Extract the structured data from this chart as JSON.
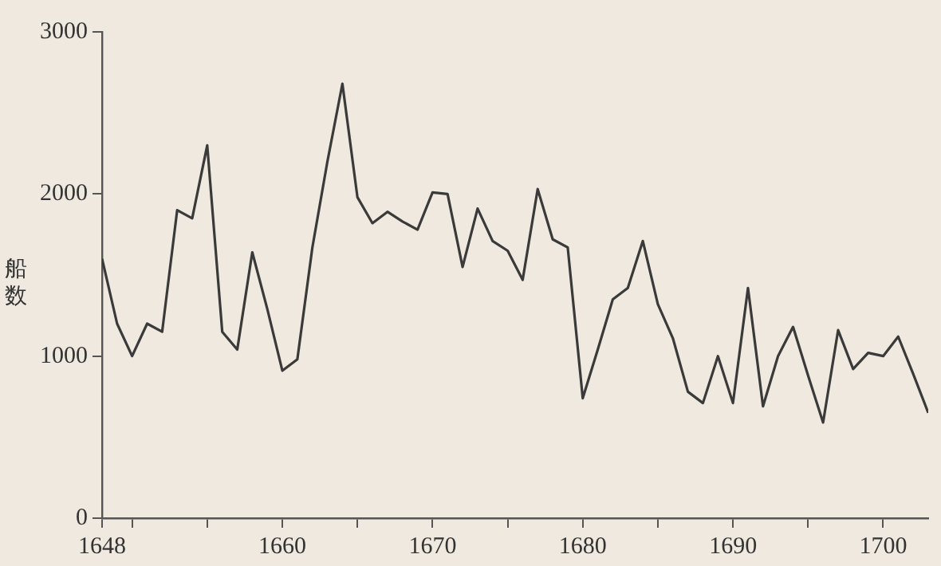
{
  "chart_data": {
    "type": "line",
    "ylabel": "船数",
    "x": [
      1648,
      1649,
      1650,
      1651,
      1652,
      1653,
      1654,
      1655,
      1656,
      1657,
      1658,
      1659,
      1660,
      1661,
      1662,
      1663,
      1664,
      1665,
      1666,
      1667,
      1668,
      1669,
      1670,
      1671,
      1672,
      1673,
      1674,
      1675,
      1676,
      1677,
      1678,
      1679,
      1680,
      1681,
      1682,
      1683,
      1684,
      1685,
      1686,
      1687,
      1688,
      1689,
      1690,
      1691,
      1692,
      1693,
      1694,
      1695,
      1696,
      1697,
      1698,
      1699,
      1700,
      1701,
      1702,
      1703
    ],
    "series": [
      {
        "color": "#3a3a3a",
        "values": [
          1600,
          1200,
          1000,
          1200,
          1150,
          1900,
          1850,
          2300,
          1150,
          1040,
          1640,
          1290,
          910,
          980,
          1670,
          2200,
          2680,
          1980,
          1820,
          1890,
          1830,
          1780,
          2010,
          2000,
          1550,
          1910,
          1710,
          1650,
          1470,
          2030,
          1720,
          1670,
          740,
          1040,
          1350,
          1420,
          1710,
          1320,
          1110,
          780,
          710,
          1000,
          710,
          1420,
          690,
          1000,
          1180,
          880,
          590,
          1160,
          920,
          1020,
          1000,
          1120,
          890,
          650
        ]
      }
    ],
    "xlim": [
      1648,
      1703
    ],
    "xticks": [
      1648,
      {
        "value": 1650,
        "label": null
      },
      {
        "value": 1655,
        "label": null
      },
      1660,
      {
        "value": 1665,
        "label": null
      },
      1670,
      {
        "value": 1675,
        "label": null
      },
      1680,
      {
        "value": 1685,
        "label": null
      },
      1690,
      {
        "value": 1695,
        "label": null
      },
      1700
    ],
    "ylim": [
      0,
      3000
    ],
    "yticks": [
      0,
      1000,
      2000,
      3000
    ],
    "legend": false,
    "marker": "none",
    "line_style": "solid"
  }
}
